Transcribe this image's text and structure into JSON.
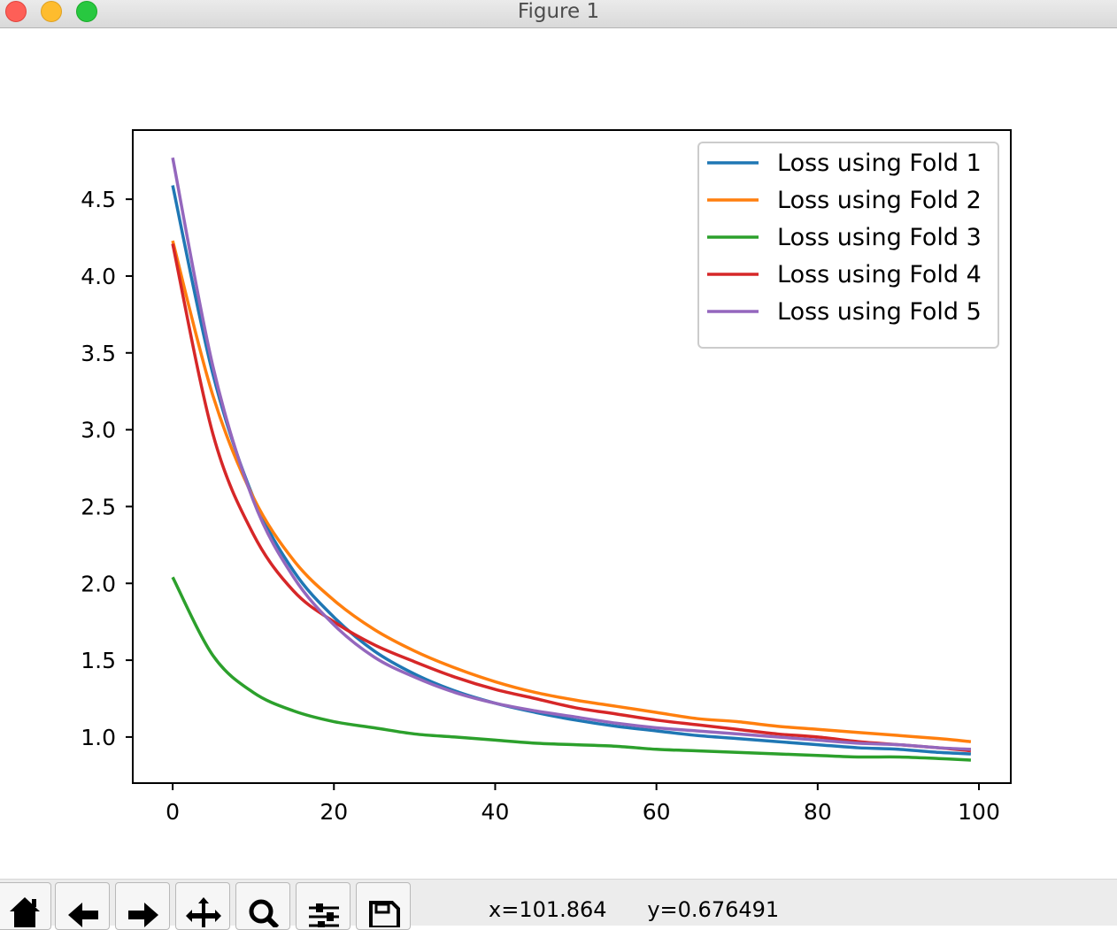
{
  "window": {
    "title": "Figure 1"
  },
  "toolbar": {
    "buttons": [
      {
        "name": "home",
        "icon": "home-icon"
      },
      {
        "name": "back",
        "icon": "back-arrow-icon"
      },
      {
        "name": "forward",
        "icon": "forward-arrow-icon"
      },
      {
        "name": "pan",
        "icon": "move-icon"
      },
      {
        "name": "zoom",
        "icon": "magnifier-icon"
      },
      {
        "name": "configure-subplots",
        "icon": "sliders-icon"
      },
      {
        "name": "save",
        "icon": "floppy-disk-icon"
      }
    ],
    "x_readout": "x=101.864",
    "y_readout": "y=0.676491"
  },
  "chart_data": {
    "type": "line",
    "title": "",
    "xlabel": "",
    "ylabel": "",
    "xlim": [
      -4.95,
      103.95
    ],
    "ylim": [
      0.7,
      4.95
    ],
    "xticks": [
      0,
      20,
      40,
      60,
      80,
      100
    ],
    "xtick_labels": [
      "0",
      "20",
      "40",
      "60",
      "80",
      "100"
    ],
    "yticks": [
      1.0,
      1.5,
      2.0,
      2.5,
      3.0,
      3.5,
      4.0,
      4.5
    ],
    "ytick_labels": [
      "1.0",
      "1.5",
      "2.0",
      "2.5",
      "3.0",
      "3.5",
      "4.0",
      "4.5"
    ],
    "grid": false,
    "legend_position": "top-right",
    "x": [
      0,
      5,
      10,
      15,
      20,
      25,
      30,
      35,
      40,
      45,
      50,
      55,
      60,
      65,
      70,
      75,
      80,
      85,
      90,
      95,
      99
    ],
    "series": [
      {
        "name": "Loss using Fold 1",
        "color": "#1f77b4",
        "values": [
          4.59,
          3.36,
          2.56,
          2.08,
          1.78,
          1.56,
          1.41,
          1.3,
          1.22,
          1.16,
          1.11,
          1.07,
          1.04,
          1.01,
          0.99,
          0.97,
          0.95,
          0.93,
          0.92,
          0.9,
          0.89
        ]
      },
      {
        "name": "Loss using Fold 2",
        "color": "#ff7f0e",
        "values": [
          4.23,
          3.22,
          2.56,
          2.15,
          1.89,
          1.7,
          1.56,
          1.45,
          1.36,
          1.29,
          1.24,
          1.2,
          1.16,
          1.12,
          1.1,
          1.07,
          1.05,
          1.03,
          1.01,
          0.99,
          0.97
        ]
      },
      {
        "name": "Loss using Fold 3",
        "color": "#2ca02c",
        "values": [
          2.04,
          1.53,
          1.29,
          1.17,
          1.1,
          1.06,
          1.02,
          1.0,
          0.98,
          0.96,
          0.95,
          0.94,
          0.92,
          0.91,
          0.9,
          0.89,
          0.88,
          0.87,
          0.87,
          0.86,
          0.85
        ]
      },
      {
        "name": "Loss using Fold 4",
        "color": "#d62728",
        "values": [
          4.21,
          2.97,
          2.32,
          1.95,
          1.75,
          1.6,
          1.49,
          1.39,
          1.31,
          1.25,
          1.19,
          1.15,
          1.11,
          1.08,
          1.05,
          1.02,
          1.0,
          0.97,
          0.95,
          0.93,
          0.91
        ]
      },
      {
        "name": "Loss using Fold 5",
        "color": "#9467bd",
        "values": [
          4.77,
          3.41,
          2.54,
          2.04,
          1.73,
          1.52,
          1.39,
          1.29,
          1.22,
          1.17,
          1.13,
          1.09,
          1.06,
          1.04,
          1.02,
          1.0,
          0.98,
          0.96,
          0.95,
          0.93,
          0.92
        ]
      }
    ]
  }
}
